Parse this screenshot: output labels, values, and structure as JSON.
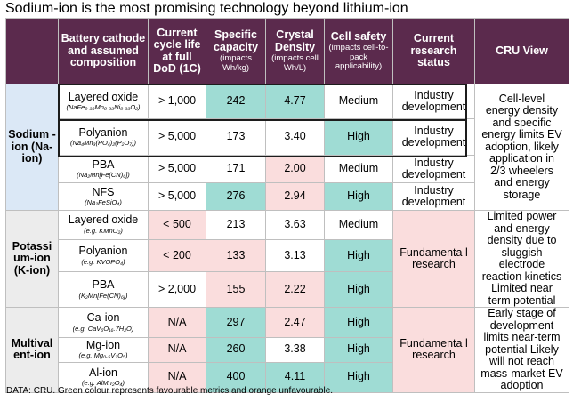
{
  "title": "Sodium-ion is the most promising technology beyond lithium-ion",
  "header": {
    "col_cathode": "Battery cathode and assumed composition",
    "col_cycle": "Current cycle life at full DoD (1C)",
    "col_capacity": "Specific capacity",
    "col_capacity_sub": "(impacts Wh/kg)",
    "col_density": "Crystal Density",
    "col_density_sub": "(impacts cell Wh/L)",
    "col_safety": "Cell safety",
    "col_safety_sub": "(impacts cell-to-pack applicability)",
    "col_research": "Current research status",
    "col_view": "CRU View"
  },
  "groups": {
    "sodium": {
      "label": "Sodium -ion (Na-ion)",
      "research": "Industry development",
      "view": "Cell-level energy density and specific energy limits EV adoption, likely application in 2/3 wheelers and energy storage"
    },
    "potassium": {
      "label": "Potassi um-ion (K-ion)",
      "research": "Fundamenta l research",
      "view": "Limited power and energy density due to sluggish electrode reaction kinetics Limited near term potential"
    },
    "multivalent": {
      "label": "Multival ent-ion",
      "research": "Fundamenta l research",
      "view": "Early stage of development limits near-term potential Likely will not reach mass-market EV adoption"
    }
  },
  "rows": [
    {
      "name": "Layered oxide",
      "formula": "(NaFe₀.₃₃Mn₀.₃₃Ni₀.₃₃O₂)",
      "cycle": "> 1,000",
      "capacity": "242",
      "density": "4.77",
      "safety": "Medium",
      "research": "Industry development"
    },
    {
      "name": "Polyanion",
      "formula": "(Na₄Mn₃(PO₄)₂(P₂O₇))",
      "cycle": "> 5,000",
      "capacity": "173",
      "density": "3.40",
      "safety": "High",
      "research": "Industry development"
    },
    {
      "name": "PBA",
      "formula": "(Na₂Mn[Fe(CN)₆])",
      "cycle": "> 5,000",
      "capacity": "171",
      "density": "2.00",
      "safety": "Medium",
      "research": "Industry development"
    },
    {
      "name": "NFS",
      "formula": "(Na₂FeSiO₄)",
      "cycle": "> 5,000",
      "capacity": "276",
      "density": "2.94",
      "safety": "High",
      "research": "Industry development"
    },
    {
      "name": "Layered oxide",
      "formula": "(e.g. KMnO₂)",
      "cycle": "< 500",
      "capacity": "213",
      "density": "3.63",
      "safety": "Medium"
    },
    {
      "name": "Polyanion",
      "formula": "(e.g. KVOPO₄)",
      "cycle": "< 200",
      "capacity": "133",
      "density": "3.13",
      "safety": "High"
    },
    {
      "name": "PBA",
      "formula": "(K₂Mn[Fe(CN)₆])",
      "cycle": "> 2,000",
      "capacity": "155",
      "density": "2.22",
      "safety": "High"
    },
    {
      "name": "Ca-ion",
      "formula": "(e.g. CaV₆O₁₆.7H₂O)",
      "cycle": "N/A",
      "capacity": "297",
      "density": "2.47",
      "safety": "High"
    },
    {
      "name": "Mg-ion",
      "formula": "(e.g. Mg₀.₅V₂O₅)",
      "cycle": "N/A",
      "capacity": "260",
      "density": "3.38",
      "safety": "High"
    },
    {
      "name": "Al-ion",
      "formula": "(e.g. AlMn₂O₄)",
      "cycle": "N/A",
      "capacity": "400",
      "density": "4.11",
      "safety": "High"
    }
  ],
  "colors": {
    "header": "#5b2a4d",
    "favourable": "#9fdcd4",
    "unfavourable": "#fadddd",
    "sodium_group": "#dbe8f6",
    "other_group": "#ececec"
  },
  "footer": "DATA: CRU. Green colour represents favourable metrics and orange unfavourable."
}
